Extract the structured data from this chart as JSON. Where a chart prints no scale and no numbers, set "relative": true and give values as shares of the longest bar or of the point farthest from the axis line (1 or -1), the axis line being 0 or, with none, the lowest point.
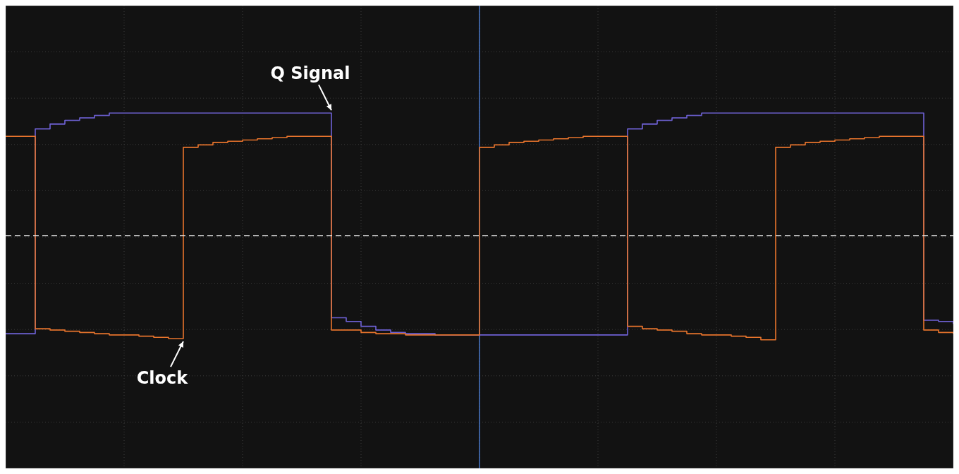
{
  "chart_data": {
    "type": "step",
    "relative": true,
    "grid": true,
    "legend": false,
    "categories": [
      null,
      null,
      null,
      null,
      null,
      null,
      null,
      null,
      null,
      null,
      null,
      null,
      null,
      null,
      null,
      null,
      null,
      null,
      null,
      null,
      null,
      null,
      null,
      null,
      null,
      null,
      null,
      null,
      null,
      null,
      null,
      null,
      null,
      null,
      null,
      null,
      null,
      null,
      null,
      null,
      null,
      null,
      null,
      null,
      null,
      null,
      null,
      null,
      null,
      null,
      null,
      null,
      null,
      null,
      null,
      null,
      null,
      null,
      null,
      null,
      null,
      null,
      null,
      null,
      null
    ],
    "series": [
      {
        "name": "Q Signal",
        "color": "#6f62d6",
        "values": [
          -0.8,
          -0.8,
          0.87,
          0.91,
          0.94,
          0.96,
          0.98,
          1,
          1,
          1,
          1,
          1,
          1,
          1,
          1,
          1,
          1,
          1,
          1,
          1,
          1,
          1,
          -0.67,
          -0.7,
          -0.74,
          -0.77,
          -0.79,
          -0.8,
          -0.8,
          -0.81,
          -0.81,
          -0.81,
          -0.81,
          -0.81,
          -0.81,
          -0.81,
          -0.81,
          -0.81,
          -0.81,
          -0.81,
          -0.81,
          -0.81,
          0.87,
          0.91,
          0.94,
          0.96,
          0.98,
          1,
          1,
          1,
          1,
          1,
          1,
          1,
          1,
          1,
          1,
          1,
          1,
          1,
          1,
          1,
          -0.69,
          -0.7,
          -0.72
        ]
      },
      {
        "name": "Clock",
        "color": "#e8742c",
        "values": [
          0.81,
          0.81,
          -0.76,
          -0.77,
          -0.78,
          -0.79,
          -0.8,
          -0.81,
          -0.81,
          -0.82,
          -0.83,
          -0.84,
          0.72,
          0.74,
          0.76,
          0.77,
          0.78,
          0.79,
          0.8,
          0.81,
          0.81,
          0.81,
          -0.77,
          -0.77,
          -0.79,
          -0.8,
          -0.8,
          -0.81,
          -0.81,
          -0.81,
          -0.81,
          -0.81,
          0.72,
          0.74,
          0.76,
          0.77,
          0.78,
          0.79,
          0.8,
          0.81,
          0.81,
          0.81,
          -0.74,
          -0.76,
          -0.77,
          -0.78,
          -0.8,
          -0.81,
          -0.81,
          -0.82,
          -0.83,
          -0.85,
          0.72,
          0.74,
          0.76,
          0.77,
          0.78,
          0.79,
          0.8,
          0.81,
          0.81,
          0.81,
          -0.77,
          -0.79,
          -0.8
        ]
      }
    ],
    "ref_lines": [
      {
        "axis": "y",
        "value": 0,
        "color": "#e8e8e8",
        "line_style": "dashed"
      }
    ]
  }
}
